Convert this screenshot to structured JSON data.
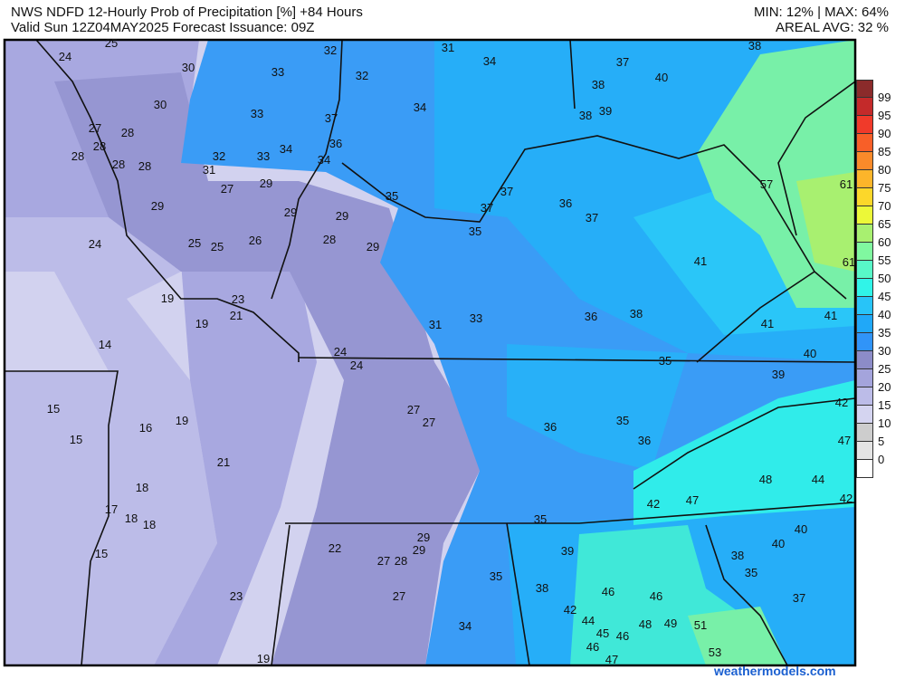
{
  "header": {
    "title": "NWS NDFD 12-Hourly Prob of Precipitation [%] +84 Hours",
    "valid": "Valid Sun 12Z04MAY2025   Forecast Issuance: 09Z",
    "minmax": "MIN: 12% | MAX: 64%",
    "areal_avg": "AREAL AVG: 32 %"
  },
  "legend": {
    "labels": [
      "99",
      "95",
      "90",
      "85",
      "80",
      "75",
      "70",
      "65",
      "60",
      "55",
      "50",
      "45",
      "40",
      "35",
      "30",
      "25",
      "20",
      "15",
      "10",
      "5",
      "0"
    ],
    "colors": [
      "#8b2b2b",
      "#c42a2a",
      "#f03a2a",
      "#f85f28",
      "#fa8a2a",
      "#fcb52a",
      "#fcd72a",
      "#ecf838",
      "#a8f070",
      "#80f8a0",
      "#58f8c8",
      "#30f4e8",
      "#28c4f8",
      "#20a8f8",
      "#3094f8",
      "#8c8cc8",
      "#a4a4dc",
      "#bcbce8",
      "#d4d4f0",
      "#cdcdcd",
      "#e4e4e4",
      "#ffffff"
    ]
  },
  "map_labels": [
    "24",
    "25",
    "30",
    "33",
    "32",
    "31",
    "34",
    "38",
    "37",
    "40",
    "32",
    "30",
    "33",
    "37",
    "34",
    "38",
    "38",
    "39",
    "27",
    "28",
    "28",
    "28",
    "28",
    "28",
    "32",
    "33",
    "34",
    "36",
    "34",
    "31",
    "27",
    "29",
    "35",
    "37",
    "37",
    "36",
    "37",
    "57",
    "61",
    "29",
    "29",
    "29",
    "28",
    "29",
    "35",
    "24",
    "25",
    "25",
    "26",
    "41",
    "61",
    "19",
    "23",
    "21",
    "19",
    "31",
    "33",
    "36",
    "38",
    "41",
    "41",
    "14",
    "24",
    "24",
    "35",
    "40",
    "39",
    "15",
    "27",
    "27",
    "36",
    "35",
    "42",
    "16",
    "19",
    "15",
    "36",
    "47",
    "21",
    "48",
    "44",
    "18",
    "42",
    "42",
    "47",
    "17",
    "18",
    "18",
    "35",
    "15",
    "22",
    "29",
    "27",
    "28",
    "29",
    "39",
    "40",
    "40",
    "38",
    "35",
    "35",
    "38",
    "46",
    "46",
    "37",
    "23",
    "27",
    "42",
    "44",
    "45",
    "46",
    "48",
    "49",
    "51",
    "34",
    "46",
    "47",
    "19",
    "53"
  ],
  "watermark": "weathermodels.com"
}
